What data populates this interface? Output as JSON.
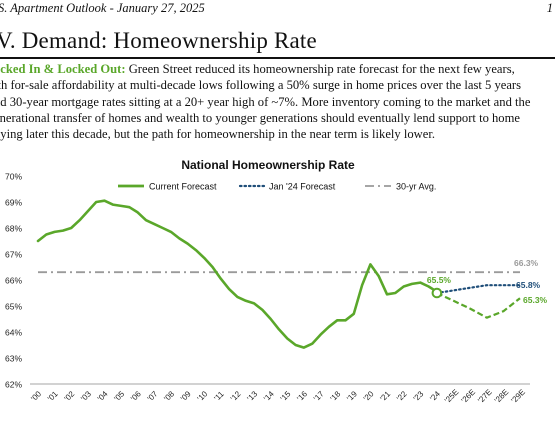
{
  "header": {
    "title": "S. Apartment Outlook - January 27, 2025",
    "page_marker": "1"
  },
  "section": {
    "title": "V. Demand: Homeownership Rate"
  },
  "body": {
    "lead": "ocked In & Locked Out:",
    "line1_rest": " Green Street reduced its homeownership rate forecast for the next few years,",
    "line2": "ith for-sale affordability at multi-decade lows following a 50% surge in home prices over the last 5 years",
    "line3": "nd 30-year mortgage rates sitting at a 20+ year high of ~7%. More inventory coming to the market and the",
    "line4": "enerational transfer of homes and wealth to younger generations should eventually lend support to home",
    "line5": "uying later this decade, but the path for homeownership in the near term is likely lower."
  },
  "colors": {
    "current": "#5aa72a",
    "jan24": "#1f4e79",
    "avg": "#9a9a9a",
    "text": "#111111"
  },
  "chart_data": {
    "type": "line",
    "title": "National Homeownership Rate",
    "ylim": [
      62,
      70
    ],
    "y_ticks": [
      "62%",
      "63%",
      "64%",
      "65%",
      "66%",
      "67%",
      "68%",
      "69%",
      "70%"
    ],
    "x_ticks": [
      "'00",
      "'01",
      "'02",
      "'03",
      "'04",
      "'05",
      "'06",
      "'07",
      "'08",
      "'09",
      "'10",
      "'11",
      "'12",
      "'13",
      "'14",
      "'15",
      "'16",
      "'17",
      "'18",
      "'19",
      "'20",
      "'21",
      "'22",
      "'23",
      "'24",
      "'25E",
      "'26E",
      "'27E",
      "'28E",
      "'29E"
    ],
    "legend": [
      "Current Forecast",
      "Jan '24 Forecast",
      "30-yr Avg."
    ],
    "series": [
      {
        "name": "Current Forecast",
        "style": "solid",
        "points": [
          [
            0,
            67.5
          ],
          [
            0.5,
            67.75
          ],
          [
            1,
            67.85
          ],
          [
            1.5,
            67.9
          ],
          [
            2,
            68.0
          ],
          [
            2.5,
            68.3
          ],
          [
            3,
            68.65
          ],
          [
            3.5,
            69.0
          ],
          [
            4,
            69.05
          ],
          [
            4.5,
            68.9
          ],
          [
            5,
            68.85
          ],
          [
            5.5,
            68.8
          ],
          [
            6,
            68.6
          ],
          [
            6.5,
            68.3
          ],
          [
            7,
            68.15
          ],
          [
            7.5,
            68.0
          ],
          [
            8,
            67.85
          ],
          [
            8.5,
            67.6
          ],
          [
            9,
            67.4
          ],
          [
            9.5,
            67.15
          ],
          [
            10,
            66.85
          ],
          [
            10.5,
            66.5
          ],
          [
            11,
            66.05
          ],
          [
            11.5,
            65.65
          ],
          [
            12,
            65.35
          ],
          [
            12.5,
            65.2
          ],
          [
            13,
            65.1
          ],
          [
            13.5,
            64.85
          ],
          [
            14,
            64.5
          ],
          [
            14.5,
            64.1
          ],
          [
            15,
            63.75
          ],
          [
            15.5,
            63.5
          ],
          [
            16,
            63.4
          ],
          [
            16.5,
            63.55
          ],
          [
            17,
            63.9
          ],
          [
            17.5,
            64.2
          ],
          [
            18,
            64.45
          ],
          [
            18.5,
            64.45
          ],
          [
            19,
            64.7
          ],
          [
            19.5,
            65.8
          ],
          [
            20,
            66.6
          ],
          [
            20.5,
            66.15
          ],
          [
            21,
            65.45
          ],
          [
            21.5,
            65.5
          ],
          [
            22,
            65.75
          ],
          [
            22.5,
            65.85
          ],
          [
            23,
            65.9
          ],
          [
            23.5,
            65.75
          ],
          [
            24,
            65.55
          ]
        ]
      },
      {
        "name": "Current Forecast (projected)",
        "style": "dashed",
        "points": [
          [
            24,
            65.5
          ],
          [
            25,
            65.2
          ],
          [
            26,
            64.9
          ],
          [
            27,
            64.55
          ],
          [
            28,
            64.8
          ],
          [
            29,
            65.3
          ]
        ]
      },
      {
        "name": "Jan '24 Forecast",
        "style": "dotted",
        "points": [
          [
            24,
            65.5
          ],
          [
            25,
            65.6
          ],
          [
            26,
            65.7
          ],
          [
            27,
            65.8
          ],
          [
            28,
            65.8
          ],
          [
            29,
            65.8
          ]
        ]
      },
      {
        "name": "30-yr Avg.",
        "style": "dashdot",
        "points": [
          [
            0,
            66.3
          ],
          [
            29,
            66.3
          ]
        ]
      }
    ],
    "data_labels": [
      {
        "x": 24,
        "y": 65.5,
        "text": "65.5%",
        "series": "current"
      },
      {
        "x": 29,
        "y": 66.3,
        "text": "66.3%",
        "series": "avg"
      },
      {
        "x": 29,
        "y": 65.8,
        "text": "65.8%",
        "series": "jan24"
      },
      {
        "x": 29,
        "y": 65.3,
        "text": "65.3%",
        "series": "current"
      }
    ],
    "grid": false,
    "legend_position": "top"
  }
}
